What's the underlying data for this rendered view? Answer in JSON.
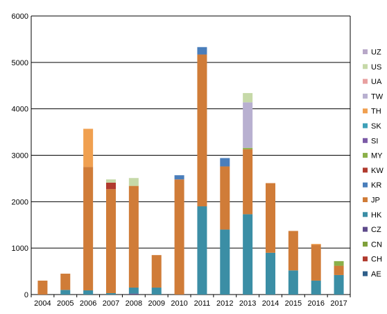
{
  "chart_data": {
    "type": "bar",
    "stacked": true,
    "title": "",
    "xlabel": "",
    "ylabel": "",
    "ylim": [
      0,
      6000
    ],
    "ytick_step": 1000,
    "grid": "horizontal",
    "legend_position": "right",
    "categories": [
      "2004",
      "2005",
      "2006",
      "2007",
      "2008",
      "2009",
      "2010",
      "2011",
      "2012",
      "2013",
      "2014",
      "2015",
      "2016",
      "2017"
    ],
    "series": [
      {
        "name": "AE",
        "color": "#2f5f8a",
        "values": [
          0,
          0,
          0,
          0,
          0,
          0,
          0,
          0,
          0,
          0,
          0,
          0,
          0,
          0
        ]
      },
      {
        "name": "CH",
        "color": "#b03a2e",
        "values": [
          0,
          0,
          0,
          0,
          0,
          0,
          0,
          0,
          0,
          0,
          0,
          0,
          0,
          0
        ]
      },
      {
        "name": "CN",
        "color": "#7fa03a",
        "values": [
          0,
          0,
          0,
          0,
          0,
          0,
          0,
          0,
          0,
          0,
          0,
          0,
          0,
          0
        ]
      },
      {
        "name": "CZ",
        "color": "#5e4b8b",
        "values": [
          0,
          0,
          0,
          0,
          20,
          0,
          0,
          0,
          0,
          0,
          0,
          0,
          0,
          0
        ]
      },
      {
        "name": "HK",
        "color": "#3b8ea5",
        "values": [
          0,
          100,
          90,
          30,
          130,
          150,
          0,
          1900,
          1400,
          1730,
          900,
          520,
          300,
          420
        ]
      },
      {
        "name": "JP",
        "color": "#d07c38",
        "values": [
          300,
          350,
          2660,
          2240,
          2190,
          700,
          2480,
          3270,
          1360,
          1400,
          1500,
          850,
          770,
          200
        ]
      },
      {
        "name": "KR",
        "color": "#4a7ebb",
        "values": [
          0,
          0,
          0,
          0,
          0,
          0,
          90,
          160,
          180,
          0,
          0,
          0,
          0,
          0
        ]
      },
      {
        "name": "KW",
        "color": "#b03a2e",
        "values": [
          0,
          0,
          0,
          140,
          0,
          0,
          0,
          0,
          0,
          0,
          0,
          0,
          0,
          0
        ]
      },
      {
        "name": "MY",
        "color": "#8bb04a",
        "values": [
          0,
          0,
          0,
          0,
          0,
          0,
          0,
          0,
          0,
          30,
          0,
          0,
          0,
          100
        ]
      },
      {
        "name": "SI",
        "color": "#7b5aa6",
        "values": [
          0,
          0,
          0,
          0,
          0,
          0,
          0,
          0,
          0,
          0,
          0,
          0,
          0,
          0
        ]
      },
      {
        "name": "SK",
        "color": "#3ea0b8",
        "values": [
          0,
          0,
          0,
          0,
          0,
          0,
          0,
          0,
          0,
          0,
          0,
          0,
          0,
          0
        ]
      },
      {
        "name": "TH",
        "color": "#f0a050",
        "values": [
          0,
          0,
          820,
          0,
          0,
          0,
          0,
          0,
          0,
          0,
          0,
          0,
          20,
          0
        ]
      },
      {
        "name": "TW",
        "color": "#b8b0d0",
        "values": [
          0,
          0,
          0,
          0,
          0,
          0,
          0,
          0,
          0,
          980,
          0,
          0,
          0,
          0
        ]
      },
      {
        "name": "UA",
        "color": "#e8a0a0",
        "values": [
          0,
          0,
          0,
          0,
          0,
          0,
          0,
          0,
          0,
          0,
          0,
          0,
          0,
          0
        ]
      },
      {
        "name": "US",
        "color": "#c6d9a8",
        "values": [
          0,
          0,
          0,
          70,
          170,
          0,
          0,
          0,
          0,
          200,
          0,
          0,
          0,
          0
        ]
      },
      {
        "name": "UZ",
        "color": "#b8a8c8",
        "values": [
          0,
          0,
          0,
          0,
          0,
          0,
          0,
          0,
          0,
          0,
          0,
          0,
          0,
          0
        ]
      }
    ]
  }
}
